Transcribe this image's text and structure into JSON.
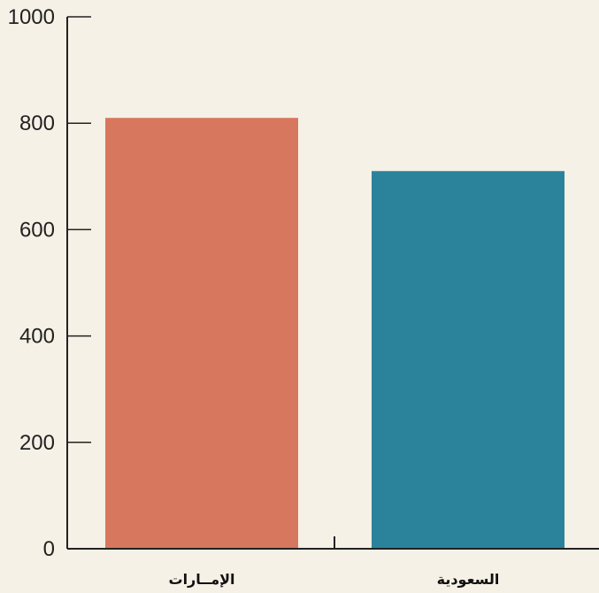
{
  "chart_data": {
    "type": "bar",
    "categories": [
      "الإمــارات",
      "السعودية"
    ],
    "values": [
      810,
      710
    ],
    "colors": [
      "#d7785e",
      "#2b839b"
    ],
    "ylim": [
      0,
      1000
    ],
    "yticks": [
      0,
      200,
      400,
      600,
      800,
      1000
    ],
    "ytick_labels": [
      "0",
      "200",
      "400",
      "600",
      "800",
      "1000"
    ],
    "grid": false,
    "title": "",
    "xlabel": "",
    "ylabel": ""
  },
  "style": {
    "background": "#f6f1e6",
    "axis_color": "#222222"
  }
}
